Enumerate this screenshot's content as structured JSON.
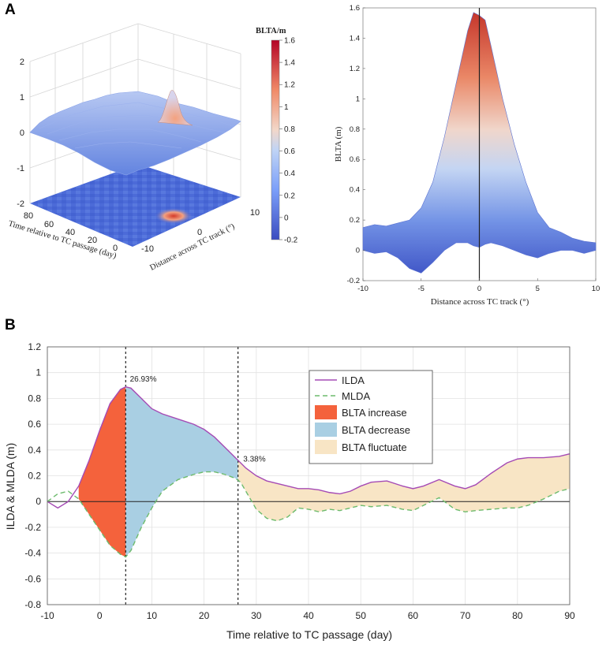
{
  "figure": {
    "panel_a_label": "A",
    "panel_b_label": "B"
  },
  "chart_data": [
    {
      "type": "surface3d",
      "title": "",
      "colorbar_label": "BLTA/m",
      "colorbar_ticks": [
        "1.6",
        "1.4",
        "1.2",
        "1",
        "0.8",
        "0.6",
        "0.4",
        "0.2",
        "0",
        "-0.2"
      ],
      "colorbar_range": [
        -0.2,
        1.6
      ],
      "z_ticks": [
        "2",
        "1",
        "0",
        "-1",
        "-2"
      ],
      "time_ticks": [
        "80",
        "60",
        "40",
        "20",
        "0"
      ],
      "distance_ticks": [
        "10",
        "0",
        "-10"
      ],
      "xlabel": "Time relative to TC passage (day)",
      "ylabel": "Distance across TC track (°)",
      "peak_value": 1.6,
      "peak_distance": 0,
      "peak_time": 0
    },
    {
      "type": "area",
      "xlabel": "Distance across TC track (°)",
      "ylabel": "BLTA (m)",
      "xlim": [
        -10,
        10
      ],
      "ylim": [
        -0.2,
        1.6
      ],
      "x_ticks": [
        "-10",
        "-5",
        "0",
        "5",
        "10"
      ],
      "y_ticks": [
        "1.6",
        "1.4",
        "1.2",
        "1",
        "0.8",
        "0.6",
        "0.4",
        "0.2",
        "0",
        "-0.2"
      ],
      "profile": {
        "x": [
          -10,
          -9,
          -8,
          -7,
          -6,
          -5,
          -4,
          -3,
          -2,
          -1,
          -0.5,
          0,
          0.5,
          1,
          2,
          3,
          4,
          5,
          6,
          7,
          8,
          9,
          10
        ],
        "upper": [
          0.15,
          0.17,
          0.16,
          0.18,
          0.2,
          0.28,
          0.45,
          0.75,
          1.1,
          1.45,
          1.57,
          1.55,
          1.52,
          1.35,
          1.0,
          0.7,
          0.45,
          0.25,
          0.15,
          0.12,
          0.08,
          0.06,
          0.05
        ],
        "lower": [
          0,
          -0.02,
          -0.01,
          -0.05,
          -0.12,
          -0.15,
          -0.08,
          0.0,
          0.05,
          0.05,
          0.03,
          0.02,
          0.04,
          0.05,
          0.03,
          0.0,
          -0.03,
          -0.05,
          -0.02,
          0.0,
          0.0,
          -0.02,
          0.0
        ]
      },
      "vertical_line_x": 0
    },
    {
      "type": "line",
      "title": "",
      "xlabel": "Time relative to TC passage (day)",
      "ylabel": "ILDA & MLDA (m)",
      "xlim": [
        -10,
        90
      ],
      "ylim": [
        -0.8,
        1.2
      ],
      "x_ticks": [
        "-10",
        "0",
        "10",
        "20",
        "30",
        "40",
        "50",
        "60",
        "70",
        "80",
        "90"
      ],
      "y_ticks": [
        "1.2",
        "1",
        "0.8",
        "0.6",
        "0.4",
        "0.2",
        "0",
        "-0.2",
        "-0.4",
        "-0.6",
        "-0.8"
      ],
      "grid": true,
      "x": [
        -10,
        -8,
        -6,
        -4,
        -2,
        0,
        2,
        4,
        5,
        6,
        8,
        10,
        12,
        15,
        18,
        20,
        22,
        24,
        26,
        27,
        28,
        30,
        32,
        34,
        36,
        38,
        40,
        42,
        44,
        46,
        48,
        50,
        52,
        55,
        58,
        60,
        62,
        65,
        68,
        70,
        72,
        75,
        78,
        80,
        82,
        85,
        88,
        90
      ],
      "series": [
        {
          "name": "ILDA",
          "color": "#a54bb5",
          "values": [
            0.0,
            -0.05,
            0.0,
            0.12,
            0.32,
            0.55,
            0.76,
            0.87,
            0.89,
            0.88,
            0.8,
            0.72,
            0.68,
            0.64,
            0.6,
            0.56,
            0.5,
            0.42,
            0.34,
            0.3,
            0.26,
            0.2,
            0.16,
            0.14,
            0.12,
            0.1,
            0.1,
            0.09,
            0.07,
            0.06,
            0.08,
            0.12,
            0.15,
            0.16,
            0.12,
            0.1,
            0.12,
            0.17,
            0.12,
            0.1,
            0.13,
            0.22,
            0.3,
            0.33,
            0.34,
            0.34,
            0.35,
            0.37
          ]
        },
        {
          "name": "MLDA",
          "color": "#6dbb6d",
          "dashed": true,
          "values": [
            0.0,
            0.06,
            0.08,
            0.02,
            -0.1,
            -0.22,
            -0.34,
            -0.41,
            -0.43,
            -0.38,
            -0.2,
            -0.05,
            0.08,
            0.17,
            0.21,
            0.23,
            0.23,
            0.21,
            0.18,
            0.15,
            0.08,
            -0.06,
            -0.13,
            -0.15,
            -0.12,
            -0.05,
            -0.06,
            -0.08,
            -0.06,
            -0.07,
            -0.05,
            -0.03,
            -0.04,
            -0.03,
            -0.06,
            -0.07,
            -0.03,
            0.03,
            -0.06,
            -0.08,
            -0.07,
            -0.06,
            -0.05,
            -0.05,
            -0.03,
            0.02,
            0.08,
            0.1
          ]
        }
      ],
      "fill_regions": [
        {
          "name": "BLTA increase",
          "color": "#f4623c",
          "from": -4,
          "to": 5
        },
        {
          "name": "BLTA decrease",
          "color": "#a9cfe3",
          "from": 5,
          "to": 26.5
        },
        {
          "name": "BLTA fluctuate",
          "color": "#f8e5c5",
          "from": 26.5,
          "to": 90
        }
      ],
      "vertical_lines": [
        5,
        26.5
      ],
      "annotations": [
        {
          "text": "26.93%",
          "x": 5.8,
          "y": 0.93
        },
        {
          "text": "3.38%",
          "x": 27.5,
          "y": 0.31
        }
      ],
      "legend_position": "top-right"
    }
  ]
}
